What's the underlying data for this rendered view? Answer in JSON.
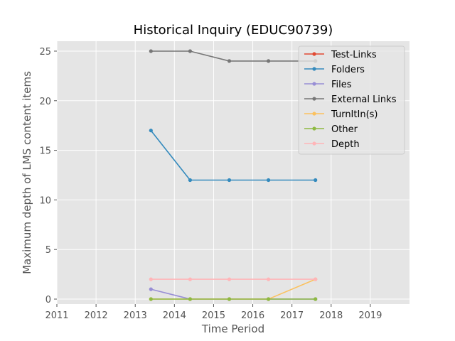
{
  "chart_data": {
    "type": "line",
    "title": "Historical Inquiry (EDUC90739)",
    "xlabel": "Time Period",
    "ylabel": "Maximum depth of LMS content items",
    "xlim": [
      2011,
      2020
    ],
    "ylim": [
      -0.5,
      26
    ],
    "xticks": [
      "2011",
      "2012",
      "2013",
      "2014",
      "2015",
      "2016",
      "2017",
      "2018",
      "2019"
    ],
    "yticks": [
      "0",
      "5",
      "10",
      "15",
      "20",
      "25"
    ],
    "grid": true,
    "legend_position": "top-right",
    "x": [
      2013.4,
      2014.4,
      2015.4,
      2016.4,
      2017.6
    ],
    "series": [
      {
        "name": "Test-Links",
        "color": "#e24a33",
        "values": [
          null,
          null,
          null,
          null,
          null
        ]
      },
      {
        "name": "Folders",
        "color": "#348abd",
        "values": [
          17,
          12,
          12,
          12,
          12
        ]
      },
      {
        "name": "Files",
        "color": "#988ed5",
        "values": [
          1,
          0,
          0,
          0,
          0
        ]
      },
      {
        "name": "External Links",
        "color": "#777777",
        "values": [
          25,
          25,
          24,
          24,
          24
        ]
      },
      {
        "name": "TurnItIn(s)",
        "color": "#fbc15e",
        "values": [
          0,
          0,
          0,
          0,
          2
        ]
      },
      {
        "name": "Other",
        "color": "#8eba42",
        "values": [
          0,
          0,
          0,
          0,
          0
        ]
      },
      {
        "name": "Depth",
        "color": "#ffb5b8",
        "values": [
          2,
          2,
          2,
          2,
          2
        ]
      }
    ]
  }
}
